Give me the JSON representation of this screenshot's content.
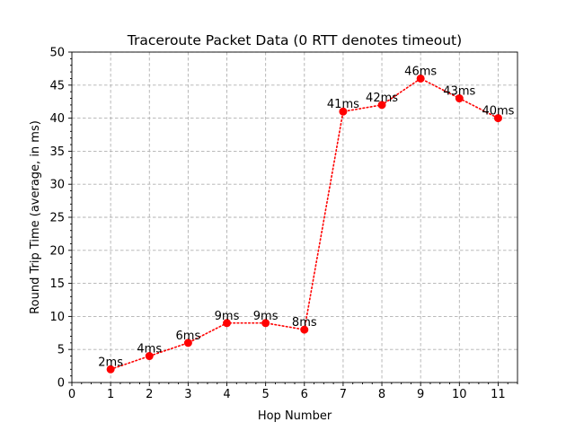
{
  "chart_data": {
    "type": "line",
    "title": "Traceroute Packet Data (0 RTT denotes timeout)",
    "xlabel": "Hop Number",
    "ylabel": "Round Trip Time (average, in ms)",
    "x": [
      1,
      2,
      3,
      4,
      5,
      6,
      7,
      8,
      9,
      10,
      11
    ],
    "y": [
      2,
      4,
      6,
      9,
      9,
      8,
      41,
      42,
      46,
      43,
      40
    ],
    "data_labels": [
      "2ms",
      "4ms",
      "6ms",
      "9ms",
      "9ms",
      "8ms",
      "41ms",
      "42ms",
      "46ms",
      "43ms",
      "40ms"
    ],
    "xlim": [
      0,
      11.5
    ],
    "ylim": [
      0,
      50
    ],
    "xticks": [
      0,
      1,
      2,
      3,
      4,
      5,
      6,
      7,
      8,
      9,
      10,
      11
    ],
    "yticks": [
      0,
      5,
      10,
      15,
      20,
      25,
      30,
      35,
      40,
      45,
      50
    ],
    "grid": true,
    "line_style": "dotted",
    "marker": "circle",
    "color": "#ff0000",
    "grid_color": "#b0b0b0"
  }
}
